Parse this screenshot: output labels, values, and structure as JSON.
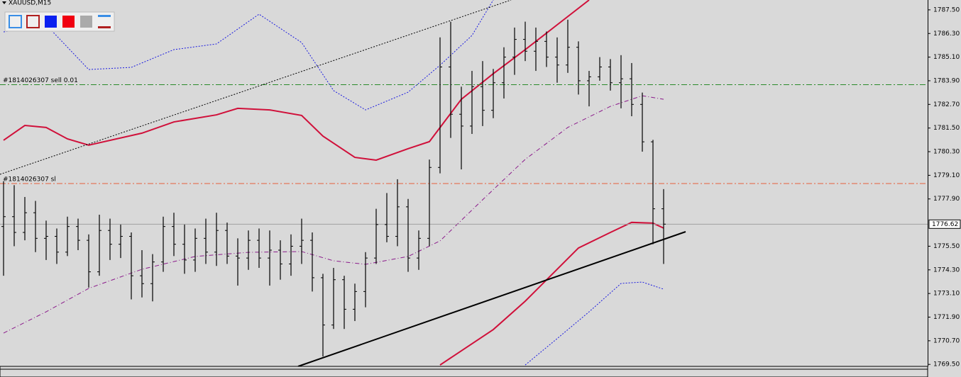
{
  "chart_data": {
    "type": "ohlc",
    "title": "XAUUSD,M15",
    "open": [
      1776.5,
      1777.0,
      1776.2,
      1777.2,
      1775.9,
      1776.0,
      1775.2,
      1776.5,
      1775.8,
      1774.2,
      1776.3,
      1775.6,
      1776.0,
      1774.0,
      1773.6,
      1774.7,
      1776.5,
      1775.6,
      1774.8,
      1775.9,
      1775.2,
      1776.3,
      1775.0,
      1774.9,
      1775.8,
      1774.9,
      1775.3,
      1774.6,
      1775.5,
      1775.8,
      1773.9,
      1771.5,
      1773.8,
      1772.3,
      1773.2,
      1774.9,
      1776.6,
      1776.0,
      1777.5,
      1774.9,
      1775.9,
      1779.5,
      1784.6,
      1782.2,
      1781.6,
      1783.6,
      1782.4,
      1783.8,
      1785.1,
      1786.0,
      1785.4,
      1785.9,
      1785.1,
      1784.7,
      1785.6,
      1783.9,
      1784.1,
      1784.6,
      1783.8,
      1784.0,
      1782.7,
      1780.8,
      1777.4
    ],
    "high": [
      1778.8,
      1778.6,
      1778.0,
      1777.8,
      1776.8,
      1776.4,
      1777.0,
      1776.9,
      1776.1,
      1777.1,
      1776.9,
      1776.6,
      1776.2,
      1775.3,
      1775.1,
      1777.0,
      1777.2,
      1776.6,
      1776.4,
      1776.9,
      1777.2,
      1776.7,
      1775.9,
      1776.3,
      1776.4,
      1776.3,
      1775.8,
      1776.1,
      1776.9,
      1776.2,
      1774.1,
      1774.4,
      1774.0,
      1773.6,
      1775.2,
      1777.4,
      1778.2,
      1778.9,
      1777.9,
      1776.3,
      1779.9,
      1786.1,
      1786.9,
      1783.6,
      1784.4,
      1784.9,
      1784.5,
      1785.6,
      1786.6,
      1786.9,
      1786.6,
      1786.4,
      1786.1,
      1787.0,
      1785.9,
      1784.4,
      1785.1,
      1785.0,
      1785.2,
      1784.8,
      1783.3,
      1780.9,
      1778.4
    ],
    "low": [
      1774.0,
      1775.5,
      1775.8,
      1775.2,
      1774.8,
      1774.6,
      1775.0,
      1775.3,
      1773.4,
      1774.0,
      1774.8,
      1774.9,
      1772.8,
      1772.9,
      1772.7,
      1774.2,
      1775.0,
      1774.1,
      1774.2,
      1774.6,
      1774.5,
      1774.6,
      1773.5,
      1774.3,
      1774.4,
      1773.5,
      1773.8,
      1774.0,
      1774.6,
      1773.2,
      1769.9,
      1771.3,
      1771.3,
      1771.7,
      1772.4,
      1774.6,
      1775.7,
      1775.5,
      1774.2,
      1774.3,
      1775.5,
      1779.2,
      1781.0,
      1779.4,
      1781.2,
      1781.6,
      1782.0,
      1783.0,
      1784.2,
      1784.9,
      1784.4,
      1784.6,
      1783.8,
      1784.3,
      1783.2,
      1782.6,
      1783.9,
      1783.4,
      1782.5,
      1782.1,
      1780.3,
      1775.6,
      1774.6
    ],
    "close": [
      1777.0,
      1776.2,
      1777.2,
      1775.9,
      1776.0,
      1775.2,
      1776.5,
      1775.8,
      1774.2,
      1776.3,
      1775.6,
      1776.0,
      1774.0,
      1773.6,
      1774.7,
      1776.5,
      1775.6,
      1774.8,
      1775.9,
      1775.2,
      1776.3,
      1775.0,
      1774.9,
      1775.8,
      1774.9,
      1775.3,
      1774.6,
      1775.5,
      1775.8,
      1773.9,
      1771.5,
      1773.8,
      1772.3,
      1773.2,
      1774.9,
      1776.6,
      1776.0,
      1777.5,
      1774.9,
      1775.9,
      1779.5,
      1784.6,
      1782.2,
      1781.6,
      1783.6,
      1782.4,
      1783.8,
      1785.1,
      1786.0,
      1785.4,
      1785.9,
      1785.1,
      1784.7,
      1785.6,
      1783.9,
      1784.1,
      1784.6,
      1783.8,
      1784.0,
      1782.7,
      1780.8,
      1777.4,
      1776.62
    ],
    "bar_color": "#000000",
    "ylim": [
      1769.4,
      1788.0
    ],
    "yticks": [
      {
        "value": 1787.5,
        "label": "1787.50"
      },
      {
        "value": 1786.3,
        "label": "1786.30"
      },
      {
        "value": 1785.1,
        "label": "1785.10"
      },
      {
        "value": 1783.9,
        "label": "1783.90"
      },
      {
        "value": 1782.7,
        "label": "1782.70"
      },
      {
        "value": 1781.5,
        "label": "1781.50"
      },
      {
        "value": 1780.3,
        "label": "1780.30"
      },
      {
        "value": 1779.1,
        "label": "1779.10"
      },
      {
        "value": 1777.9,
        "label": "1777.90"
      },
      {
        "value": 1775.5,
        "label": "1775.50"
      },
      {
        "value": 1774.3,
        "label": "1774.30"
      },
      {
        "value": 1773.1,
        "label": "1773.10"
      },
      {
        "value": 1771.9,
        "label": "1771.90"
      },
      {
        "value": 1770.7,
        "label": "1770.70"
      },
      {
        "value": 1769.5,
        "label": "1769.50"
      }
    ],
    "current_price": 1776.62,
    "orders": [
      {
        "label": "#1814026307 sell 0.01",
        "price": 1783.7,
        "color": "#2a8a2a"
      },
      {
        "label": "#1814026307 sl",
        "price": 1778.68,
        "color": "#e8603c"
      }
    ],
    "indicators": [
      {
        "color": "#d0103a",
        "style": "solid",
        "x": [
          0,
          2,
          4,
          6,
          8,
          13,
          16,
          20,
          22,
          25,
          28,
          30,
          33,
          35,
          38,
          40,
          43,
          46,
          49,
          52,
          55
        ],
        "values": [
          1780.88,
          1781.63,
          1781.53,
          1780.95,
          1780.63,
          1781.24,
          1781.81,
          1782.17,
          1782.5,
          1782.42,
          1782.14,
          1781.09,
          1780.01,
          1779.87,
          1780.45,
          1780.81,
          1782.96,
          1784.26,
          1785.48,
          1786.74,
          1788.0
        ]
      },
      {
        "color": "#d0103a",
        "style": "solid",
        "x": [
          41,
          43,
          46,
          49,
          51,
          54,
          57,
          59,
          61,
          62
        ],
        "values": [
          1769.47,
          1770.19,
          1771.27,
          1772.71,
          1773.79,
          1775.41,
          1776.2,
          1776.71,
          1776.67,
          1776.42
        ]
      },
      {
        "color": "#8b1a8b",
        "style": "dashdot",
        "x": [
          0,
          4,
          8,
          13,
          18,
          23,
          28,
          31,
          34,
          38,
          41,
          45,
          49,
          53,
          57,
          60,
          62
        ],
        "values": [
          1771.09,
          1772.17,
          1773.36,
          1774.33,
          1774.98,
          1775.19,
          1775.23,
          1774.76,
          1774.58,
          1774.98,
          1775.77,
          1777.86,
          1779.91,
          1781.53,
          1782.6,
          1783.14,
          1782.96
        ]
      },
      {
        "color": "#1a1ae0",
        "style": "dotted",
        "x": [
          0,
          4,
          8,
          12,
          16,
          20,
          24,
          28,
          31,
          34,
          38,
          41,
          44,
          46
        ],
        "values": [
          1786.38,
          1786.74,
          1784.47,
          1784.58,
          1785.48,
          1785.77,
          1787.28,
          1785.84,
          1783.4,
          1782.42,
          1783.32,
          1784.69,
          1786.2,
          1788.0
        ]
      },
      {
        "color": "#1a1ae0",
        "style": "dotted",
        "x": [
          49,
          52,
          55,
          58,
          60,
          62
        ],
        "values": [
          1769.47,
          1770.81,
          1772.17,
          1773.61,
          1773.68,
          1773.32
        ]
      }
    ]
  }
}
